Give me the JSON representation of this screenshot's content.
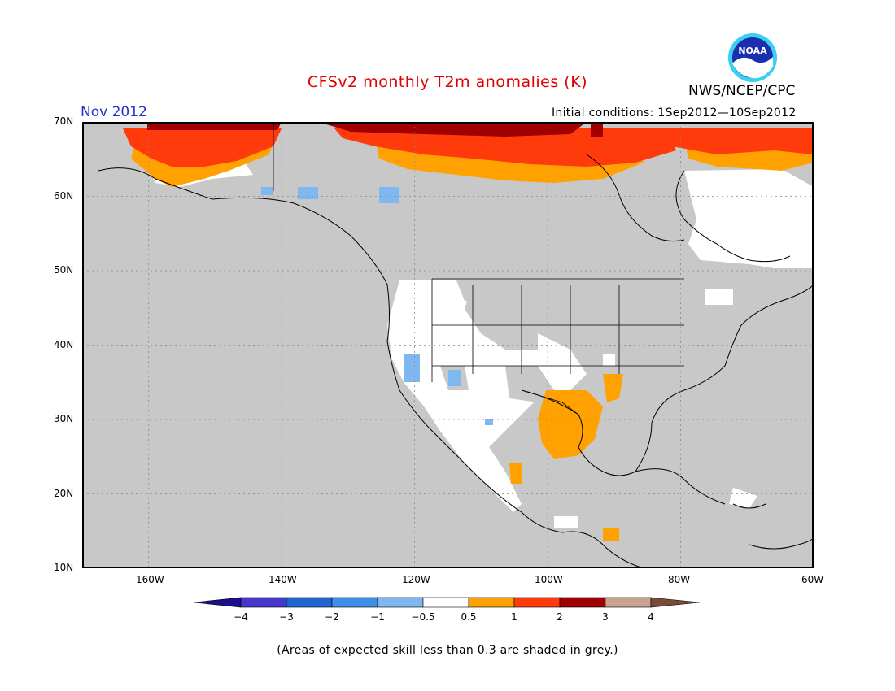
{
  "title": "CFSv2 monthly T2m anomalies (K)",
  "agency": "NWS/NCEP/CPC",
  "logo": {
    "icon": "noaa-logo-icon",
    "text": "NOAA"
  },
  "month": "Nov 2012",
  "initial_conditions": "Initial conditions: 1Sep2012—10Sep2012",
  "footnote": "(Areas of expected skill less than 0.3 are shaded in grey.)",
  "map": {
    "lon_range": [
      -170,
      -60
    ],
    "lat_range": [
      10,
      70
    ],
    "lat_labels": [
      "70N",
      "60N",
      "50N",
      "40N",
      "30N",
      "20N",
      "10N"
    ],
    "lon_labels": [
      "160W",
      "140W",
      "120W",
      "100W",
      "80W",
      "60W"
    ],
    "background_color": "#c8c8c8",
    "land_outline_color": "#000000"
  },
  "colorbar": {
    "tick_labels": [
      "−4",
      "−3",
      "−2",
      "−1",
      "−0.5",
      "0.5",
      "1",
      "2",
      "3",
      "4"
    ],
    "colors": [
      "#1c0f8c",
      "#4638cc",
      "#1f65d0",
      "#3f8fe8",
      "#7fb7f0",
      "#ffffff",
      "#ffa100",
      "#ff3a0b",
      "#a00000",
      "#c9a290",
      "#7a4a3a"
    ]
  }
}
